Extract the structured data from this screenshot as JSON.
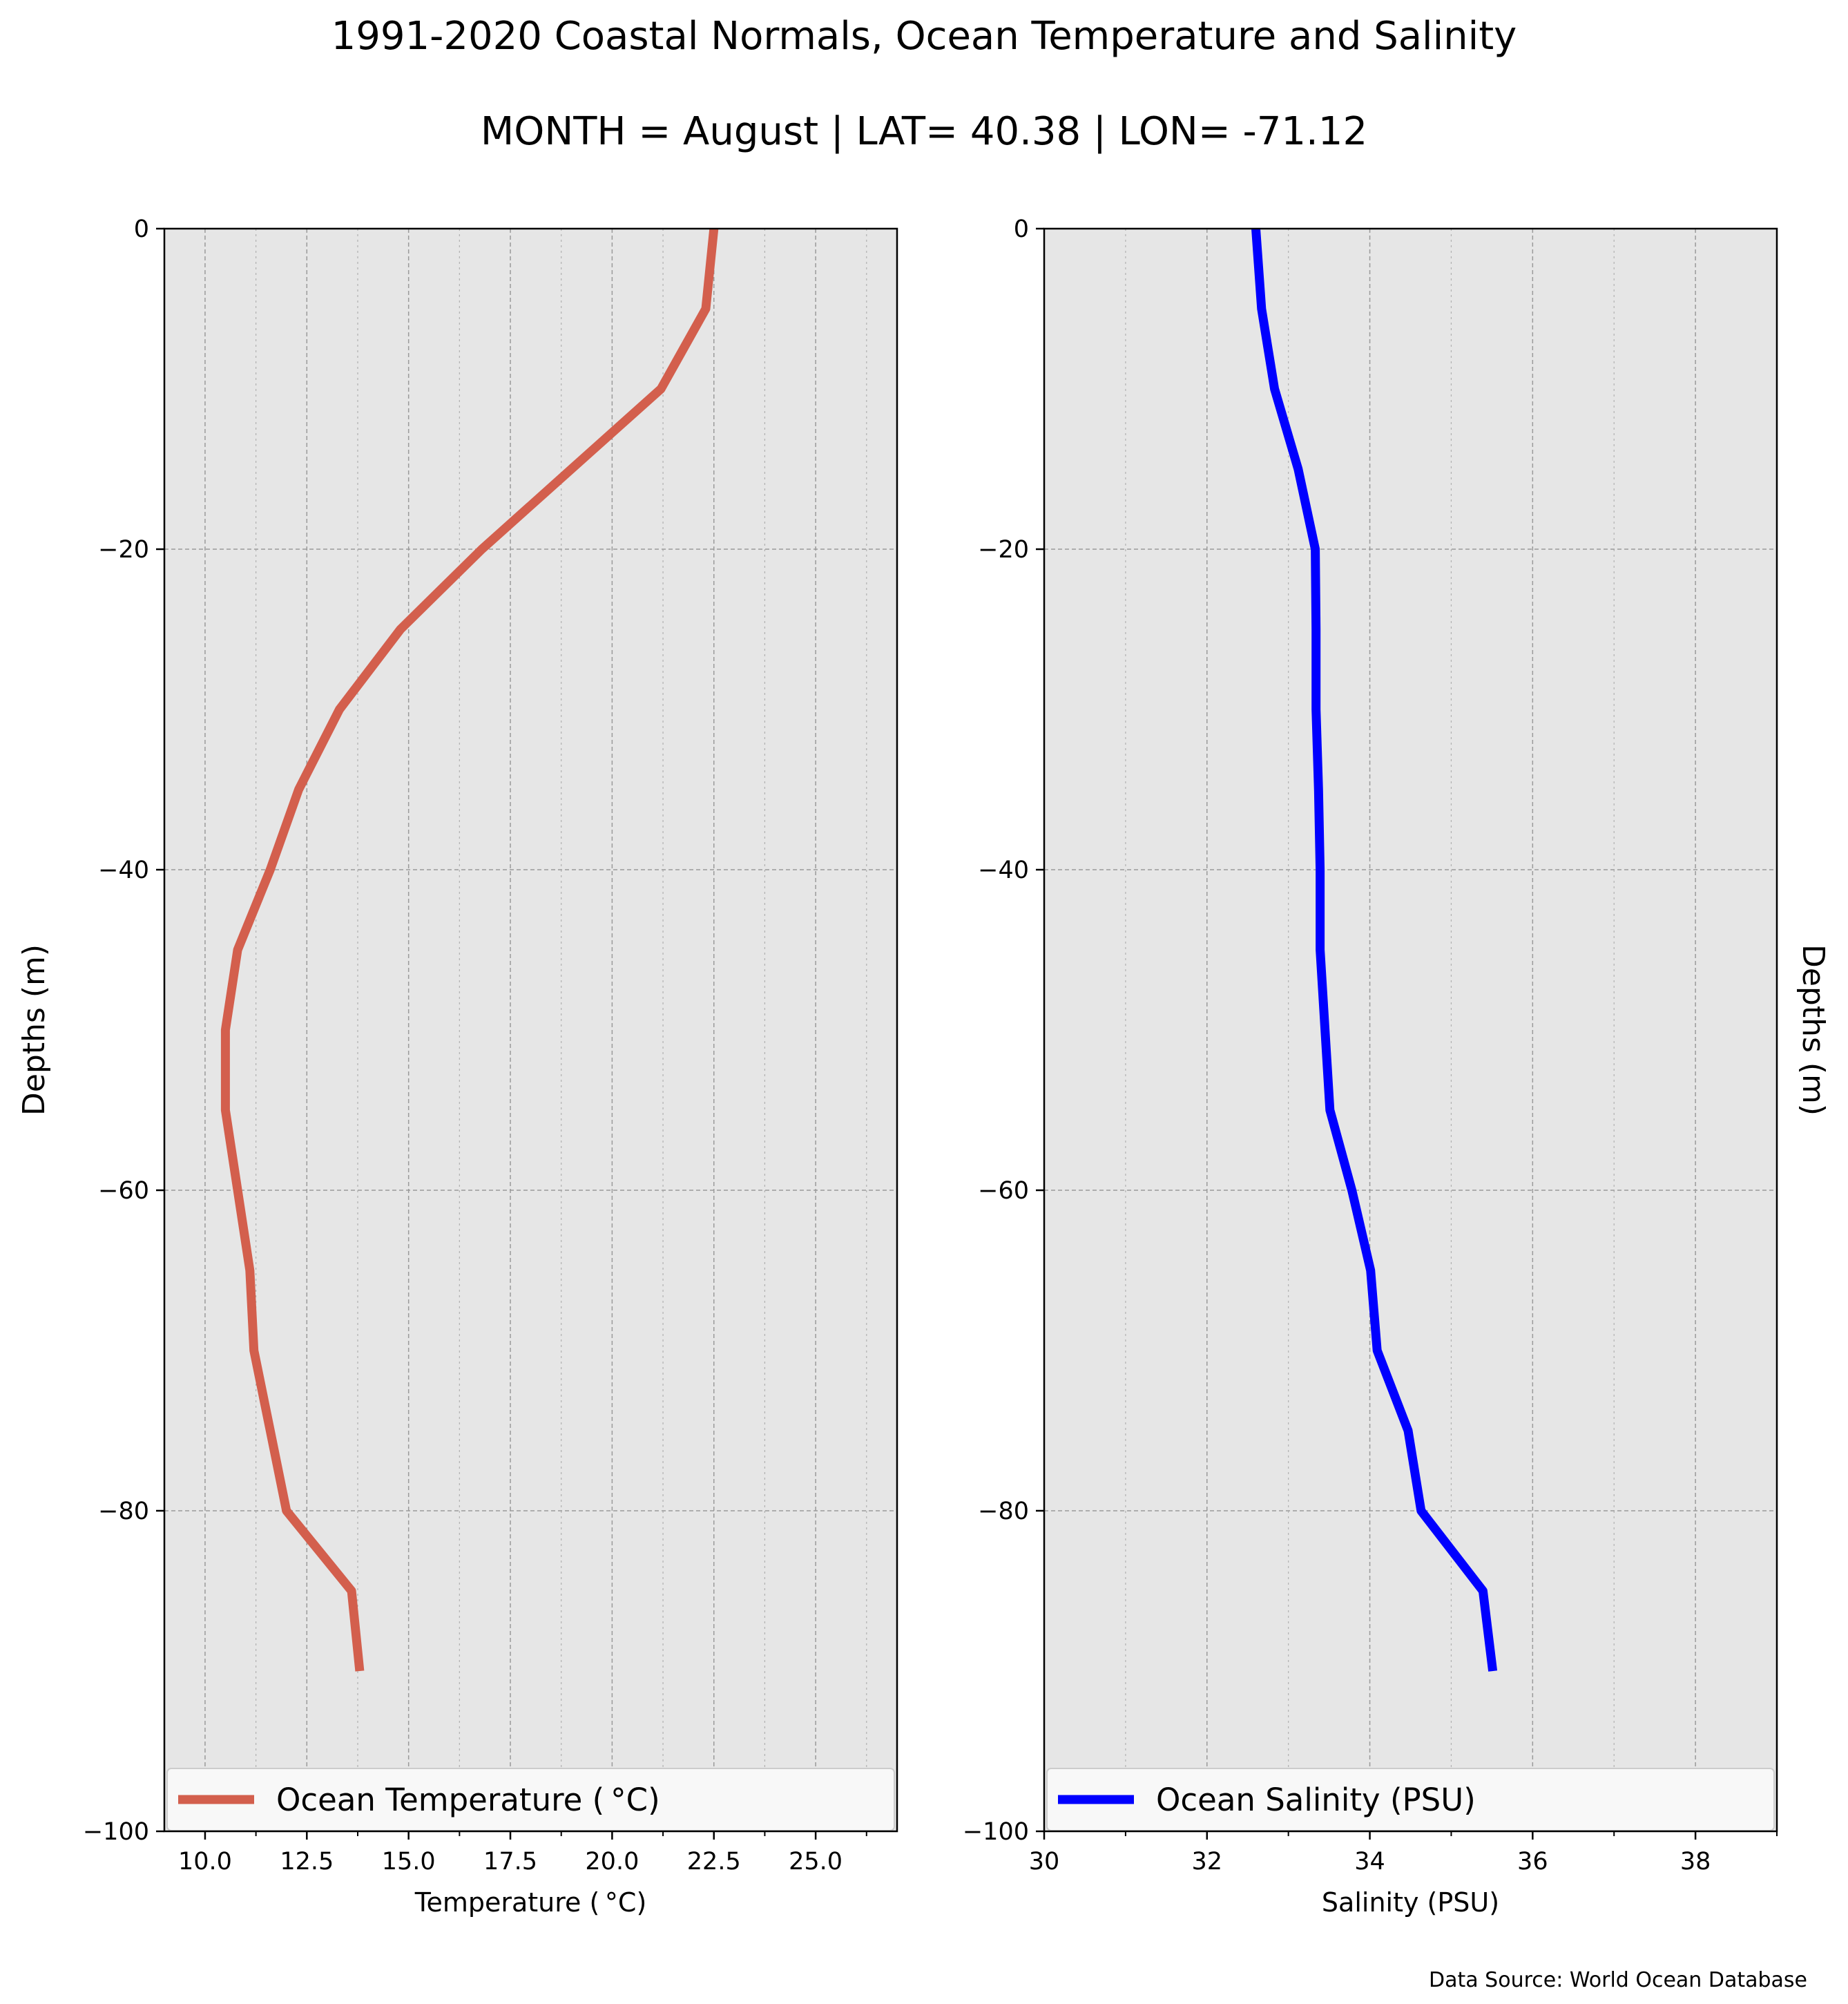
{
  "title": "1991-2020 Coastal Normals, Ocean Temperature and Salinity",
  "subtitle": "MONTH = August | LAT= 40.38 | LON= -71.12",
  "source": "Data Source: World Ocean Database",
  "chart_data": [
    {
      "type": "line",
      "xlabel": "Temperature ($^\\circ$C)",
      "xlabel_display": "Temperature ( °C)",
      "ylabel": "Depths (m)",
      "xlim": [
        9.0,
        27.0
      ],
      "ylim": [
        -100,
        0
      ],
      "xticks": [
        10.0,
        12.5,
        15.0,
        17.5,
        20.0,
        22.5,
        25.0
      ],
      "xtick_labels": [
        "10.0",
        "12.5",
        "15.0",
        "17.5",
        "20.0",
        "22.5",
        "25.0"
      ],
      "yticks": [
        0,
        -20,
        -40,
        -60,
        -80,
        -100
      ],
      "ytick_labels": [
        "0",
        "−20",
        "−40",
        "−60",
        "−80",
        "−100"
      ],
      "grid": true,
      "legend_position": "bottom",
      "series": [
        {
          "name": "Ocean Temperature ( °C)",
          "color": "#d35f4d",
          "x": [
            22.5,
            22.3,
            21.2,
            19.0,
            16.8,
            14.8,
            13.3,
            12.3,
            11.6,
            10.8,
            10.5,
            10.5,
            10.8,
            11.1,
            11.2,
            11.6,
            12.0,
            13.6,
            13.8
          ],
          "y": [
            0,
            -5,
            -10,
            -15,
            -20,
            -25,
            -30,
            -35,
            -40,
            -45,
            -50,
            -55,
            -60,
            -65,
            -70,
            -75,
            -80,
            -85,
            -90
          ]
        }
      ]
    },
    {
      "type": "line",
      "xlabel": "Salinity (PSU)",
      "ylabel": "Depths (m)",
      "xlim": [
        30,
        39
      ],
      "ylim": [
        -100,
        0
      ],
      "xticks": [
        30,
        32,
        34,
        36,
        38
      ],
      "xtick_labels": [
        "30",
        "32",
        "34",
        "36",
        "38"
      ],
      "yticks": [
        0,
        -20,
        -40,
        -60,
        -80,
        -100
      ],
      "ytick_labels": [
        "0",
        "−20",
        "−40",
        "−60",
        "−80",
        "−100"
      ],
      "grid": true,
      "legend_position": "bottom",
      "series": [
        {
          "name": "Ocean Salinity (PSU)",
          "color": "#0000ff",
          "x": [
            32.6,
            32.67,
            32.83,
            33.12,
            33.33,
            33.34,
            33.34,
            33.37,
            33.39,
            33.39,
            33.45,
            33.51,
            33.78,
            34.01,
            34.09,
            34.47,
            34.63,
            35.39,
            35.51
          ],
          "y": [
            0,
            -5,
            -10,
            -15,
            -20,
            -25,
            -30,
            -35,
            -40,
            -45,
            -50,
            -55,
            -60,
            -65,
            -70,
            -75,
            -80,
            -85,
            -90
          ]
        }
      ]
    }
  ]
}
